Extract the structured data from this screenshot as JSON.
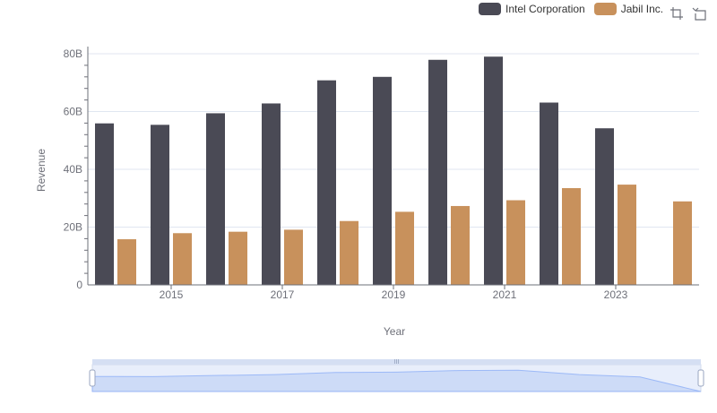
{
  "chart_data": {
    "type": "bar",
    "title": "",
    "xlabel": "Year",
    "ylabel": "Revenue",
    "ylim": [
      0,
      80
    ],
    "yticks": [
      "0",
      "20B",
      "40B",
      "60B",
      "80B"
    ],
    "categories": [
      "2014",
      "2015",
      "2016",
      "2017",
      "2018",
      "2019",
      "2020",
      "2021",
      "2022",
      "2023",
      "2024"
    ],
    "xtick_labels": [
      "2015",
      "2017",
      "2019",
      "2021",
      "2023"
    ],
    "series": [
      {
        "name": "Intel Corporation",
        "color": "#4a4a55",
        "values": [
          55.9,
          55.4,
          59.4,
          62.8,
          70.8,
          72.0,
          77.9,
          79.0,
          63.1,
          54.2,
          null
        ]
      },
      {
        "name": "Jabil Inc.",
        "color": "#c8915c",
        "values": [
          15.8,
          17.9,
          18.4,
          19.1,
          22.1,
          25.3,
          27.3,
          29.3,
          33.5,
          34.7,
          28.9
        ]
      }
    ],
    "grid": true,
    "legend_position": "top-right",
    "zoom_slider": true
  },
  "toolbox": {
    "icons": [
      "zoom-icon",
      "zoom-reset-icon"
    ],
    "handle_label": "III"
  }
}
